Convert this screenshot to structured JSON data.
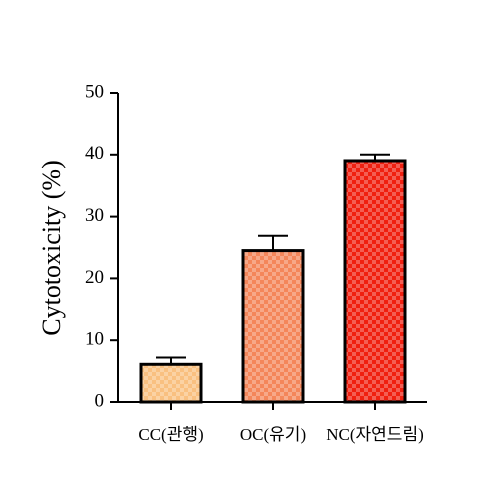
{
  "chart_data": {
    "type": "bar",
    "y_label": "Cytotoxicity (%)",
    "categories": [
      "CC(관행)",
      "OC(유기)",
      "NC(자연드림)"
    ],
    "values": [
      6.1,
      24.5,
      39.0
    ],
    "errors": [
      1.1,
      2.4,
      1.0
    ],
    "colors": [
      "#f9c080",
      "#f4865a",
      "#f02010"
    ],
    "ylim": [
      0,
      50
    ],
    "yticks": [
      0,
      10,
      20,
      30,
      40,
      50
    ]
  }
}
